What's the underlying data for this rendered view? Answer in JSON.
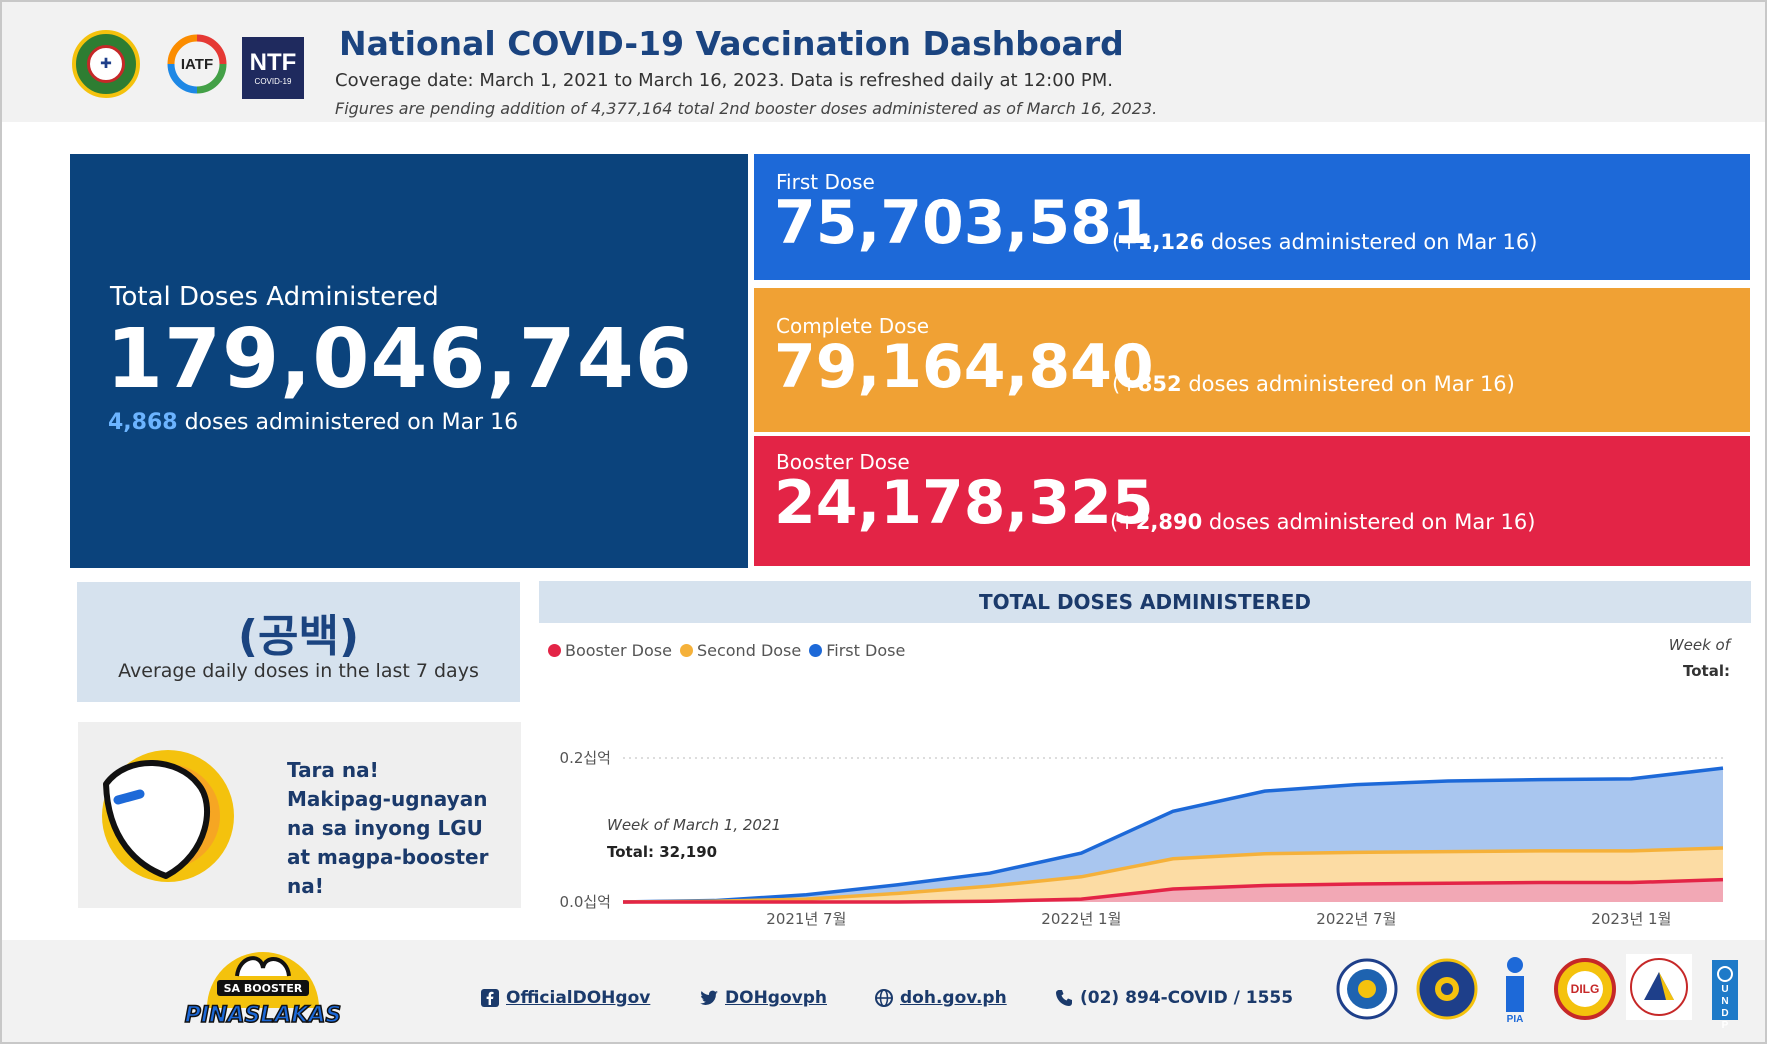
{
  "header": {
    "title": "National COVID-19 Vaccination Dashboard",
    "coverage": "Coverage date: March 1, 2021 to March 16, 2023. Data is refreshed daily at 12:00 PM.",
    "pending_note": "Figures are pending addition of 4,377,164 total 2nd booster doses administered as of March 16, 2023.",
    "logos": [
      "doh-seal-icon",
      "iatf-logo-icon",
      "ntf-covid19-logo-icon"
    ],
    "iatf_text": "IATF",
    "ntf_text": "NTF",
    "ntf_sub": "COVID-19"
  },
  "total": {
    "label": "Total Doses Administered",
    "value": "179,046,746",
    "today_count": "4,868",
    "today_text": "doses administered on Mar 16"
  },
  "first_dose": {
    "label": "First Dose",
    "value": "75,703,581",
    "delta_prefix": "(+",
    "delta": "1,126",
    "delta_suffix": "doses administered on Mar 16)"
  },
  "complete_dose": {
    "label": "Complete Dose",
    "value": "79,164,840",
    "delta_prefix": "(+",
    "delta": "852",
    "delta_suffix": "doses administered on Mar 16)"
  },
  "booster_dose": {
    "label": "Booster Dose",
    "value": "24,178,325",
    "delta_prefix": "(+",
    "delta": "2,890",
    "delta_suffix": "doses administered on Mar 16)"
  },
  "average": {
    "value": "(공백)",
    "label": "Average daily doses in the last 7 days"
  },
  "promo": {
    "line1": "Tara na!",
    "line2": "Makipag-ugnayan na sa inyong LGU at magpa-booster na!"
  },
  "chart": {
    "title": "TOTAL DOSES ADMINISTERED",
    "week_of_label": "Week of",
    "total_label": "Total:",
    "tooltip_week": "Week of March 1, 2021",
    "tooltip_total": "Total: 32,190"
  },
  "chart_data": {
    "type": "area",
    "title": "TOTAL DOSES ADMINISTERED",
    "legend": [
      "Booster Dose",
      "Second Dose",
      "First Dose"
    ],
    "legend_placement": "top-left",
    "ytick_labels": [
      "0.2십억",
      "0.0십억"
    ],
    "xtick_labels": [
      "2021년 7월",
      "2022년 1월",
      "2022년 7월",
      "2023년 1월"
    ],
    "ylim": [
      0,
      0.2
    ],
    "grid": true,
    "x": [
      "2021-03",
      "2021-05",
      "2021-07",
      "2021-09",
      "2021-11",
      "2022-01",
      "2022-03",
      "2022-05",
      "2022-07",
      "2022-09",
      "2022-11",
      "2023-01",
      "2023-03"
    ],
    "series": [
      {
        "name": "Booster Dose",
        "color": "#e32446",
        "values": [
          0,
          0,
          0,
          0,
          0.001,
          0.004,
          0.018,
          0.023,
          0.025,
          0.026,
          0.027,
          0.027,
          0.031
        ]
      },
      {
        "name": "Second Dose",
        "color": "#f5b13a",
        "values": [
          0,
          0.001,
          0.004,
          0.012,
          0.022,
          0.035,
          0.06,
          0.067,
          0.069,
          0.07,
          0.071,
          0.071,
          0.075
        ]
      },
      {
        "name": "First Dose",
        "color": "#1d69d8",
        "values": [
          0,
          0.002,
          0.01,
          0.024,
          0.04,
          0.068,
          0.126,
          0.154,
          0.163,
          0.168,
          0.17,
          0.171,
          0.186
        ]
      }
    ]
  },
  "footer": {
    "brand_top": "SA BOOSTER",
    "brand_bottom": "PINASLAKAS",
    "facebook": "OfficialDOHgov",
    "twitter": "DOHgovph",
    "website": "doh.gov.ph",
    "phone": "(02) 894-COVID / 1555",
    "partners": [
      "pcoo-seal-icon",
      "philippine-seal-icon",
      "pia-logo-icon",
      "dilg-seal-icon",
      "pcoo-30th-logo-icon",
      "undp-logo-icon"
    ],
    "pia_text": "PIA",
    "dilg_text": "DILG",
    "undp_text": "U N D P"
  }
}
